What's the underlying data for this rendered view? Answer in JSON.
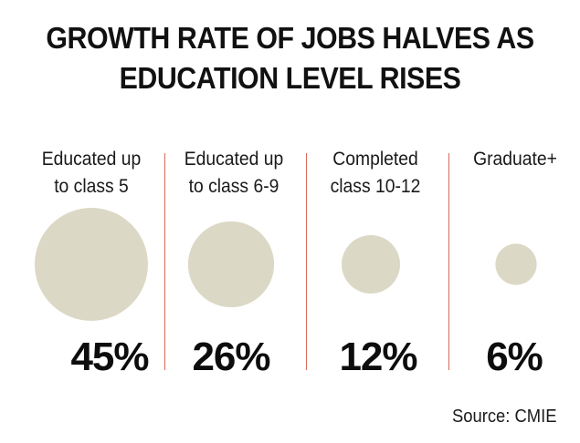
{
  "title_lines": [
    "GROWTH RATE OF JOBS HALVES AS",
    "EDUCATION LEVEL RISES"
  ],
  "source": "Source: CMIE",
  "chart_data": {
    "type": "bubble",
    "title": "GROWTH RATE OF JOBS HALVES AS EDUCATION LEVEL RISES",
    "categories": [
      [
        "Educated up",
        "to class 5"
      ],
      [
        "Educated up",
        "to class 6-9"
      ],
      [
        "Completed",
        "class 10-12"
      ],
      [
        "Graduate+"
      ]
    ],
    "values": [
      45,
      26,
      12,
      6
    ],
    "value_labels": [
      "45%",
      "26%",
      "12%",
      "6%"
    ],
    "bubble_color": "#dcd8c6",
    "divider_color": "#d96a5c"
  }
}
